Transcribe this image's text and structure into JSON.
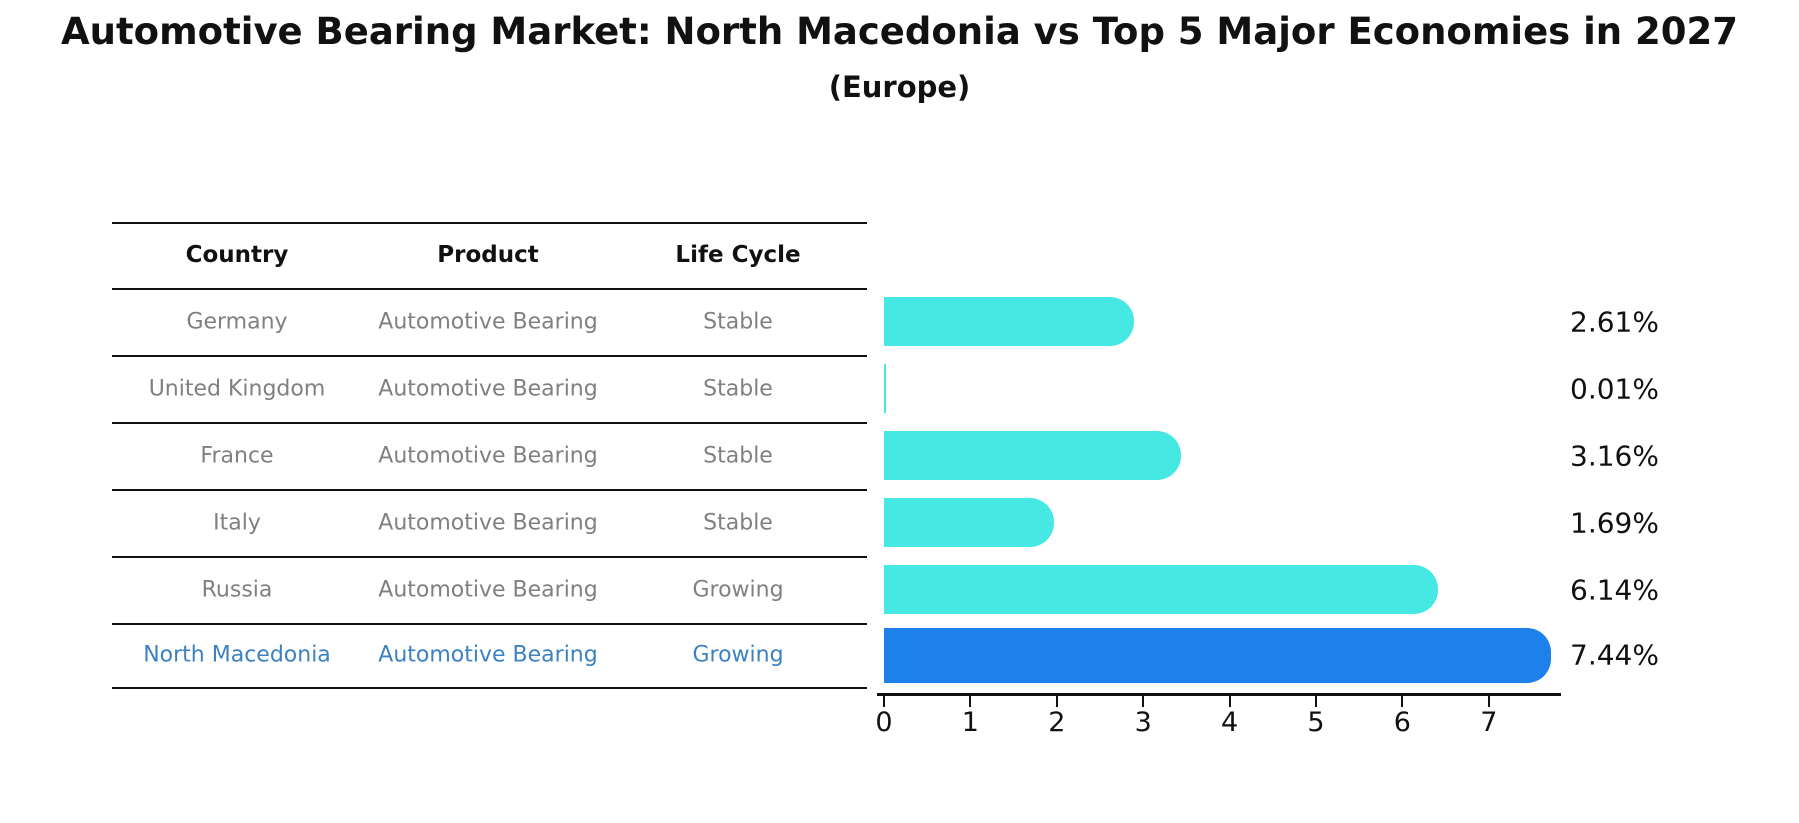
{
  "title": "Automotive Bearing Market: North Macedonia vs Top 5 Major Economies in 2027",
  "subtitle": "(Europe)",
  "table": {
    "headers": [
      "Country",
      "Product",
      "Life Cycle"
    ],
    "rows": [
      {
        "country": "Germany",
        "product": "Automotive Bearing",
        "life_cycle": "Stable",
        "highlight": false
      },
      {
        "country": "United Kingdom",
        "product": "Automotive Bearing",
        "life_cycle": "Stable",
        "highlight": false
      },
      {
        "country": "France",
        "product": "Automotive Bearing",
        "life_cycle": "Stable",
        "highlight": false
      },
      {
        "country": "Italy",
        "product": "Automotive Bearing",
        "life_cycle": "Stable",
        "highlight": false
      },
      {
        "country": "Russia",
        "product": "Automotive Bearing",
        "life_cycle": "Growing",
        "highlight": false
      },
      {
        "country": "North Macedonia",
        "product": "Automotive Bearing",
        "life_cycle": "Growing",
        "highlight": true
      }
    ]
  },
  "chart_data": {
    "type": "bar",
    "orientation": "horizontal",
    "title": "Automotive Bearing Market: North Macedonia vs Top 5 Major Economies in 2027 (Europe)",
    "categories": [
      "Germany",
      "United Kingdom",
      "France",
      "Italy",
      "Russia",
      "North Macedonia"
    ],
    "values": [
      2.61,
      0.01,
      3.16,
      1.69,
      6.14,
      7.44
    ],
    "value_labels": [
      "2.61%",
      "0.01%",
      "3.16%",
      "1.69%",
      "6.14%",
      "7.44%"
    ],
    "xlabel": "",
    "ylabel": "",
    "xticks": [
      0,
      1,
      2,
      3,
      4,
      5,
      6,
      7
    ],
    "xlim": [
      0,
      7.8
    ],
    "grid": false,
    "legend": false,
    "bar_color": "#46E8E4",
    "highlight_bar_color": "#1E80EB",
    "highlight_index": 5
  },
  "colors": {
    "row_text": "#808080",
    "header_text": "#111111",
    "highlight_text": "#3C82C3",
    "table_line": "#111111",
    "axis": "#111111",
    "value_label_text": "#111111",
    "background": "#ffffff"
  }
}
